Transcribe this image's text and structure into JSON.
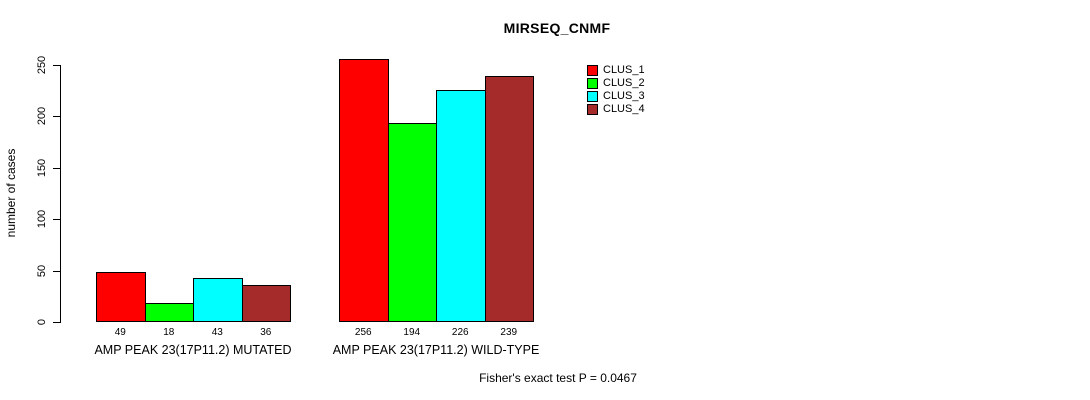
{
  "chart_data": {
    "type": "bar",
    "title": "MIRSEQ_CNMF",
    "ylabel": "number of cases",
    "xlabel": "",
    "ylim": [
      0,
      250
    ],
    "yticks": [
      0,
      50,
      100,
      150,
      200,
      250
    ],
    "grid": false,
    "legend_position": "top-right",
    "categories": [
      "AMP PEAK 23(17P11.2) MUTATED",
      "AMP PEAK 23(17P11.2) WILD-TYPE"
    ],
    "series": [
      {
        "name": "CLUS_1",
        "color": "#FF0000",
        "values": [
          49,
          256
        ]
      },
      {
        "name": "CLUS_2",
        "color": "#00FF00",
        "values": [
          18,
          194
        ]
      },
      {
        "name": "CLUS_3",
        "color": "#00FFFF",
        "values": [
          43,
          226
        ]
      },
      {
        "name": "CLUS_4",
        "color": "#A52A2A",
        "values": [
          36,
          239
        ]
      }
    ],
    "bar_value_labels": [
      [
        49,
        18,
        43,
        36
      ],
      [
        256,
        194,
        226,
        239
      ]
    ],
    "annotation": "Fisher's exact test P = 0.0467"
  }
}
